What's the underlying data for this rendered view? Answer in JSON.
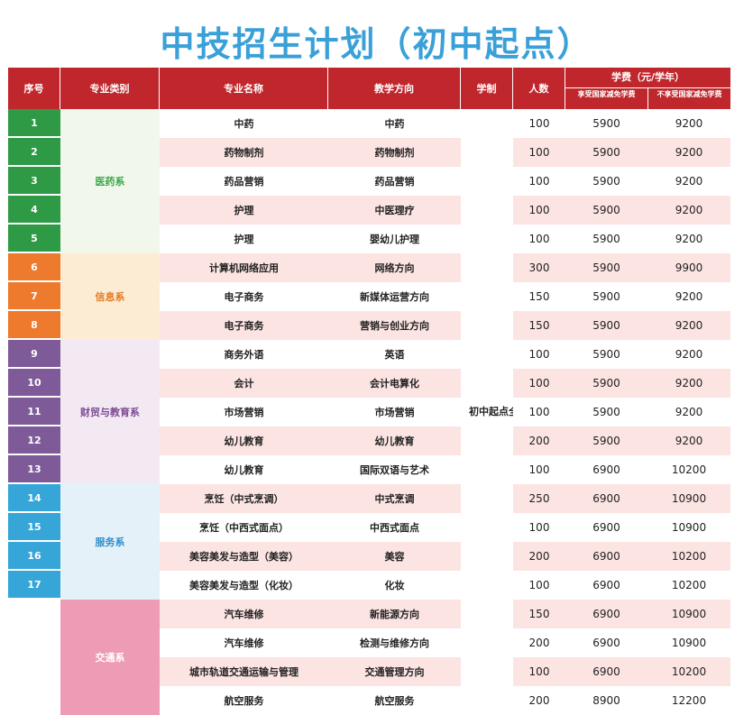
{
  "title": "中技招生计划（初中起点）",
  "headers": {
    "seq": "序号",
    "category": "专业类别",
    "major": "专业名称",
    "direction": "教学方向",
    "system": "学制",
    "people": "人数",
    "fee": "学费（元/学年）",
    "fee_sub1": "享受国家减免学费",
    "fee_sub2": "不享受国家减免学费"
  },
  "system_text": "初中起点全日制三年",
  "colors": {
    "header": "#c0272d",
    "title": "#3aa0d8",
    "row_alt": "#fbe4e2",
    "system_text": "#3aa84a"
  },
  "groups": [
    {
      "name": "医药系",
      "bg": "#f1f7ea",
      "color": "#3aa84a",
      "num_bg": "#2e9a45",
      "rows": 5
    },
    {
      "name": "信息系",
      "bg": "#fcecd4",
      "color": "#e57a22",
      "num_bg": "#ee7a2e",
      "rows": 3
    },
    {
      "name": "财贸与教育系",
      "bg": "#f3e9f3",
      "color": "#7b4c92",
      "num_bg": "#7e5b98",
      "rows": 5
    },
    {
      "name": "服务系",
      "bg": "#e4f1f9",
      "color": "#2f8ec9",
      "num_bg": "#36a6d9",
      "rows": 4
    },
    {
      "name": "交通系",
      "bg": "#ee9bb6",
      "color": "#ffffff",
      "num_bg": "",
      "rows": 4
    }
  ],
  "rows": [
    {
      "seq": "1",
      "major": "中药",
      "direction": "中药",
      "people": "100",
      "fee1": "5900",
      "fee2": "9200"
    },
    {
      "seq": "2",
      "major": "药物制剂",
      "direction": "药物制剂",
      "people": "100",
      "fee1": "5900",
      "fee2": "9200"
    },
    {
      "seq": "3",
      "major": "药品营销",
      "direction": "药品营销",
      "people": "100",
      "fee1": "5900",
      "fee2": "9200"
    },
    {
      "seq": "4",
      "major": "护理",
      "direction": "中医理疗",
      "people": "100",
      "fee1": "5900",
      "fee2": "9200"
    },
    {
      "seq": "5",
      "major": "护理",
      "direction": "婴幼儿护理",
      "people": "100",
      "fee1": "5900",
      "fee2": "9200"
    },
    {
      "seq": "6",
      "major": "计算机网络应用",
      "direction": "网络方向",
      "people": "300",
      "fee1": "5900",
      "fee2": "9900"
    },
    {
      "seq": "7",
      "major": "电子商务",
      "direction": "新媒体运营方向",
      "people": "150",
      "fee1": "5900",
      "fee2": "9200"
    },
    {
      "seq": "8",
      "major": "电子商务",
      "direction": "营销与创业方向",
      "people": "150",
      "fee1": "5900",
      "fee2": "9200"
    },
    {
      "seq": "9",
      "major": "商务外语",
      "direction": "英语",
      "people": "100",
      "fee1": "5900",
      "fee2": "9200"
    },
    {
      "seq": "10",
      "major": "会计",
      "direction": "会计电算化",
      "people": "100",
      "fee1": "5900",
      "fee2": "9200"
    },
    {
      "seq": "11",
      "major": "市场营销",
      "direction": "市场营销",
      "people": "100",
      "fee1": "5900",
      "fee2": "9200"
    },
    {
      "seq": "12",
      "major": "幼儿教育",
      "direction": "幼儿教育",
      "people": "200",
      "fee1": "5900",
      "fee2": "9200"
    },
    {
      "seq": "13",
      "major": "幼儿教育",
      "direction": "国际双语与艺术",
      "people": "100",
      "fee1": "6900",
      "fee2": "10200"
    },
    {
      "seq": "14",
      "major": "烹饪（中式烹调）",
      "direction": "中式烹调",
      "people": "250",
      "fee1": "6900",
      "fee2": "10900"
    },
    {
      "seq": "15",
      "major": "烹饪（中西式面点）",
      "direction": "中西式面点",
      "people": "100",
      "fee1": "6900",
      "fee2": "10900"
    },
    {
      "seq": "16",
      "major": "美容美发与造型（美容）",
      "direction": "美容",
      "people": "200",
      "fee1": "6900",
      "fee2": "10200"
    },
    {
      "seq": "17",
      "major": "美容美发与造型（化妆）",
      "direction": "化妆",
      "people": "100",
      "fee1": "6900",
      "fee2": "10200"
    },
    {
      "seq": "",
      "major": "汽车维修",
      "direction": "新能源方向",
      "people": "150",
      "fee1": "6900",
      "fee2": "10900"
    },
    {
      "seq": "",
      "major": "汽车维修",
      "direction": "检测与维修方向",
      "people": "200",
      "fee1": "6900",
      "fee2": "10900"
    },
    {
      "seq": "",
      "major": "城市轨道交通运输与管理",
      "direction": "交通管理方向",
      "people": "100",
      "fee1": "6900",
      "fee2": "10200"
    },
    {
      "seq": "",
      "major": "航空服务",
      "direction": "航空服务",
      "people": "200",
      "fee1": "8900",
      "fee2": "12200"
    }
  ]
}
